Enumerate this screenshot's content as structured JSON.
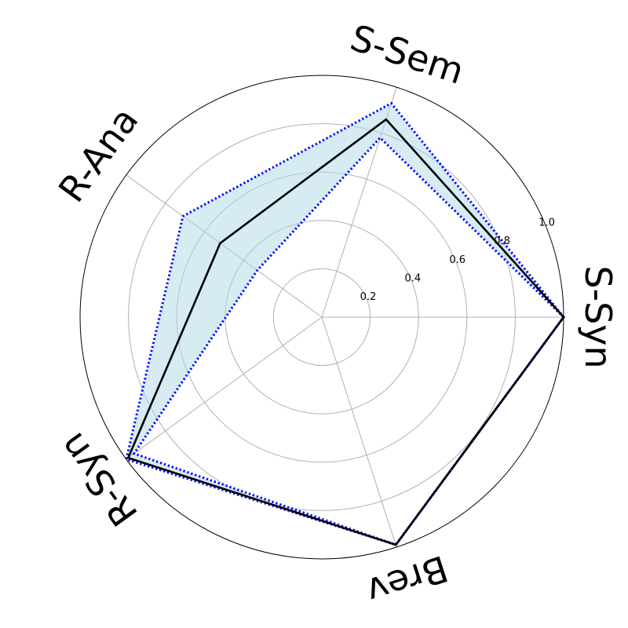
{
  "chart_data": {
    "type": "radar",
    "categories": [
      "S-Syn",
      "S-Sem",
      "R-Ana",
      "R-Syn",
      "Brev"
    ],
    "r_ticks": [
      0.2,
      0.4,
      0.6,
      0.8,
      1.0
    ],
    "r_tick_labels": [
      "0.2",
      "0.4",
      "0.6",
      "0.8",
      "1.0"
    ],
    "rlim": [
      0,
      1.0
    ],
    "grid": true,
    "series": [
      {
        "role": "mean",
        "values": [
          1.0,
          0.86,
          0.52,
          0.99,
          0.99
        ]
      },
      {
        "role": "upper",
        "values": [
          1.0,
          0.93,
          0.71,
          1.0,
          0.99
        ]
      },
      {
        "role": "lower",
        "values": [
          1.0,
          0.78,
          0.33,
          0.96,
          0.99
        ]
      }
    ],
    "colors": {
      "mean": "#000000",
      "band_fill": "#add8e6",
      "band_edge": "#0000ff",
      "grid": "#b0b0b0",
      "frame": "#000000"
    }
  }
}
